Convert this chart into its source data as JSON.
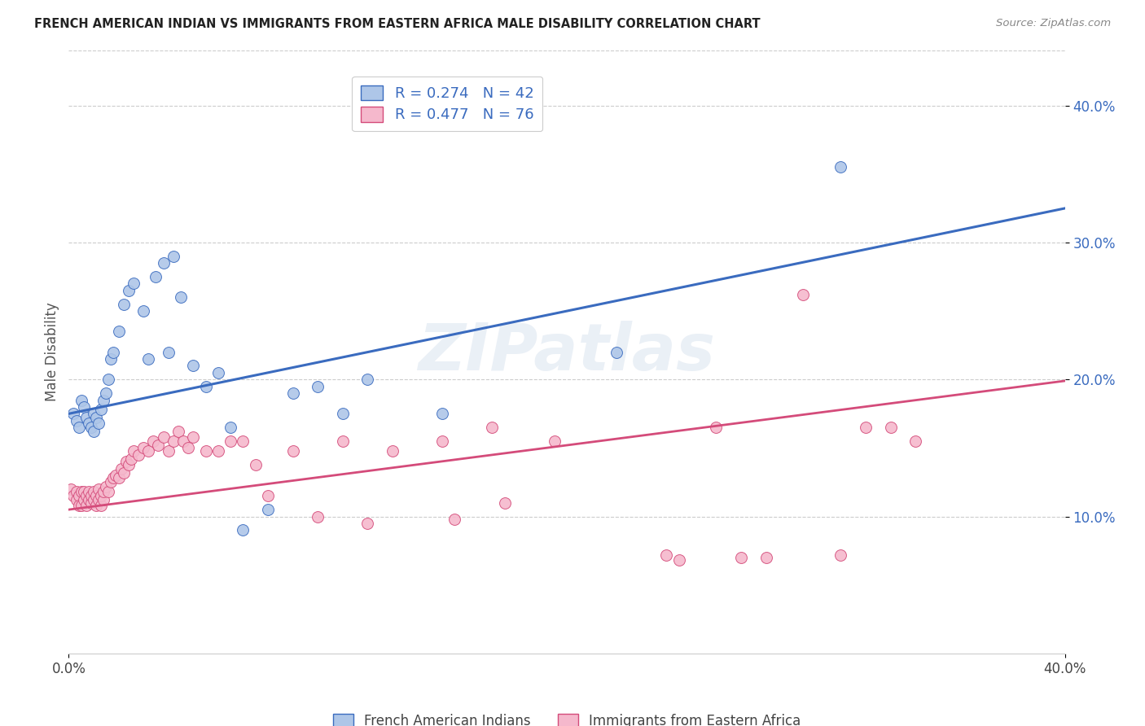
{
  "title": "FRENCH AMERICAN INDIAN VS IMMIGRANTS FROM EASTERN AFRICA MALE DISABILITY CORRELATION CHART",
  "source": "Source: ZipAtlas.com",
  "ylabel": "Male Disability",
  "xlim": [
    0.0,
    0.4
  ],
  "ylim": [
    0.0,
    0.44
  ],
  "yticks": [
    0.1,
    0.2,
    0.3,
    0.4
  ],
  "ytick_labels": [
    "10.0%",
    "20.0%",
    "30.0%",
    "40.0%"
  ],
  "legend_r1": "R = 0.274",
  "legend_n1": "N = 42",
  "legend_r2": "R = 0.477",
  "legend_n2": "N = 76",
  "label1": "French American Indians",
  "label2": "Immigrants from Eastern Africa",
  "blue_color": "#aec6e8",
  "blue_line_color": "#3a6bbf",
  "pink_color": "#f5b8cc",
  "pink_line_color": "#d44b7a",
  "blue_intercept": 0.175,
  "blue_slope": 0.375,
  "pink_intercept": 0.105,
  "pink_slope": 0.235,
  "blue_points_x": [
    0.002,
    0.003,
    0.004,
    0.005,
    0.006,
    0.007,
    0.008,
    0.009,
    0.01,
    0.01,
    0.011,
    0.012,
    0.013,
    0.014,
    0.015,
    0.016,
    0.017,
    0.018,
    0.02,
    0.022,
    0.024,
    0.026,
    0.03,
    0.032,
    0.035,
    0.038,
    0.04,
    0.042,
    0.045,
    0.05,
    0.055,
    0.06,
    0.065,
    0.07,
    0.08,
    0.09,
    0.1,
    0.11,
    0.12,
    0.15,
    0.22,
    0.31
  ],
  "blue_points_y": [
    0.175,
    0.17,
    0.165,
    0.185,
    0.18,
    0.172,
    0.168,
    0.165,
    0.175,
    0.162,
    0.172,
    0.168,
    0.178,
    0.185,
    0.19,
    0.2,
    0.215,
    0.22,
    0.235,
    0.255,
    0.265,
    0.27,
    0.25,
    0.215,
    0.275,
    0.285,
    0.22,
    0.29,
    0.26,
    0.21,
    0.195,
    0.205,
    0.165,
    0.09,
    0.105,
    0.19,
    0.195,
    0.175,
    0.2,
    0.175,
    0.22,
    0.355
  ],
  "pink_points_x": [
    0.001,
    0.002,
    0.003,
    0.003,
    0.004,
    0.004,
    0.005,
    0.005,
    0.006,
    0.006,
    0.007,
    0.007,
    0.008,
    0.008,
    0.009,
    0.009,
    0.01,
    0.01,
    0.011,
    0.011,
    0.012,
    0.012,
    0.013,
    0.013,
    0.014,
    0.014,
    0.015,
    0.016,
    0.017,
    0.018,
    0.019,
    0.02,
    0.021,
    0.022,
    0.023,
    0.024,
    0.025,
    0.026,
    0.028,
    0.03,
    0.032,
    0.034,
    0.036,
    0.038,
    0.04,
    0.042,
    0.044,
    0.046,
    0.048,
    0.05,
    0.055,
    0.06,
    0.065,
    0.07,
    0.075,
    0.08,
    0.09,
    0.1,
    0.11,
    0.12,
    0.13,
    0.15,
    0.155,
    0.17,
    0.175,
    0.195,
    0.24,
    0.245,
    0.26,
    0.27,
    0.28,
    0.295,
    0.31,
    0.32,
    0.33,
    0.34
  ],
  "pink_points_y": [
    0.12,
    0.115,
    0.118,
    0.112,
    0.115,
    0.108,
    0.118,
    0.108,
    0.112,
    0.118,
    0.115,
    0.108,
    0.112,
    0.118,
    0.11,
    0.115,
    0.112,
    0.118,
    0.108,
    0.115,
    0.112,
    0.12,
    0.108,
    0.115,
    0.112,
    0.118,
    0.122,
    0.118,
    0.125,
    0.128,
    0.13,
    0.128,
    0.135,
    0.132,
    0.14,
    0.138,
    0.142,
    0.148,
    0.145,
    0.15,
    0.148,
    0.155,
    0.152,
    0.158,
    0.148,
    0.155,
    0.162,
    0.155,
    0.15,
    0.158,
    0.148,
    0.148,
    0.155,
    0.155,
    0.138,
    0.115,
    0.148,
    0.1,
    0.155,
    0.095,
    0.148,
    0.155,
    0.098,
    0.165,
    0.11,
    0.155,
    0.072,
    0.068,
    0.165,
    0.07,
    0.07,
    0.262,
    0.072,
    0.165,
    0.165,
    0.155
  ]
}
